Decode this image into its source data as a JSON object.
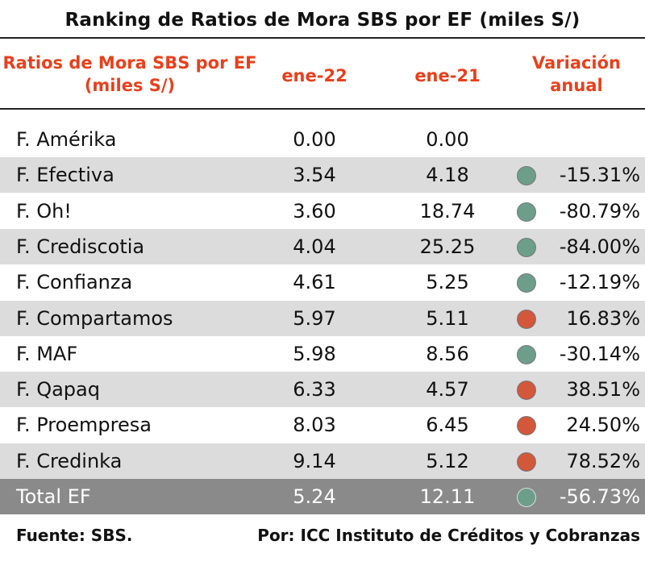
{
  "chart_data": {
    "type": "table",
    "title": "Ranking de Ratios de Mora SBS por EF (miles S/)",
    "columns": {
      "name": "Ratios de Mora SBS por EF (miles S/)",
      "a": "ene-22",
      "b": "ene-21",
      "var": "Variación anual"
    },
    "rows": [
      {
        "name": "F. Amérika",
        "a": "0.00",
        "b": "0.00",
        "var": "",
        "status": "none"
      },
      {
        "name": "F. Efectiva",
        "a": "3.54",
        "b": "4.18",
        "var": "-15.31%",
        "status": "green"
      },
      {
        "name": "F. Oh!",
        "a": "3.60",
        "b": "18.74",
        "var": "-80.79%",
        "status": "green"
      },
      {
        "name": "F. Crediscotia",
        "a": "4.04",
        "b": "25.25",
        "var": "-84.00%",
        "status": "green"
      },
      {
        "name": "F. Confianza",
        "a": "4.61",
        "b": "5.25",
        "var": "-12.19%",
        "status": "green"
      },
      {
        "name": "F. Compartamos",
        "a": "5.97",
        "b": "5.11",
        "var": "16.83%",
        "status": "red"
      },
      {
        "name": "F. MAF",
        "a": "5.98",
        "b": "8.56",
        "var": "-30.14%",
        "status": "green"
      },
      {
        "name": "F. Qapaq",
        "a": "6.33",
        "b": "4.57",
        "var": "38.51%",
        "status": "red"
      },
      {
        "name": "F. Proempresa",
        "a": "8.03",
        "b": "6.45",
        "var": "24.50%",
        "status": "red"
      },
      {
        "name": "F. Credinka",
        "a": "9.14",
        "b": "5.12",
        "var": "78.52%",
        "status": "red"
      }
    ],
    "total": {
      "name": "Total EF",
      "a": "5.24",
      "b": "12.11",
      "var": "-56.73%",
      "status": "green"
    },
    "colors": {
      "green": "#6d9e8b",
      "red": "#d3573a",
      "header": "#e8401c",
      "shade": "#dcdcdc",
      "total": "#8a8a8a"
    }
  },
  "footer": {
    "source": "Fuente: SBS.",
    "credit": "Por: ICC Instituto de Créditos y Cobranzas"
  }
}
